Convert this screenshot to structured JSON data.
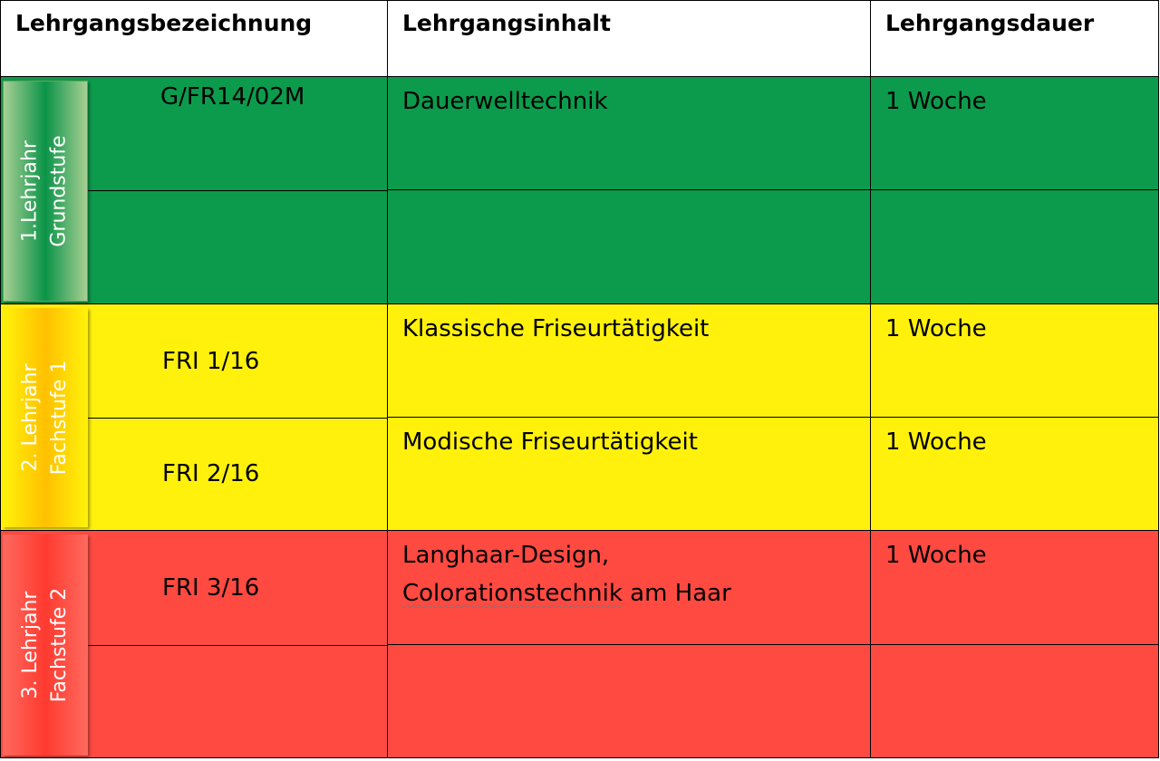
{
  "headers": {
    "name": "Lehrgangsbezeichnung",
    "content": "Lehrgangsinhalt",
    "duration": "Lehrgangsdauer"
  },
  "groups": [
    {
      "label": "1.Lehrjahr\nGrundstufe",
      "color": "#0c9b4c"
    },
    {
      "label": "2. Lehrjahr\nFachstufe 1",
      "color": "#fff10c"
    },
    {
      "label": "3. Lehrjahr\nFachstufe 2",
      "color": "#ff4a42"
    }
  ],
  "rows": [
    {
      "code": "G/FR14/02M",
      "content": "Dauerwelltechnik",
      "duration": "1 Woche"
    },
    {
      "code": "",
      "content": "",
      "duration": ""
    },
    {
      "code": "FRI 1/16",
      "content": "Klassische Friseurtätigkeit",
      "duration": "1 Woche"
    },
    {
      "code": "FRI 2/16",
      "content": "Modische Friseurtätigkeit",
      "duration": "1 Woche"
    },
    {
      "code": "FRI 3/16",
      "content": "Langhaar-Design,",
      "content2a": "Colorationstechnik",
      "content2b": " am Haar",
      "duration": "1 Woche"
    },
    {
      "code": "",
      "content": "",
      "duration": ""
    }
  ]
}
